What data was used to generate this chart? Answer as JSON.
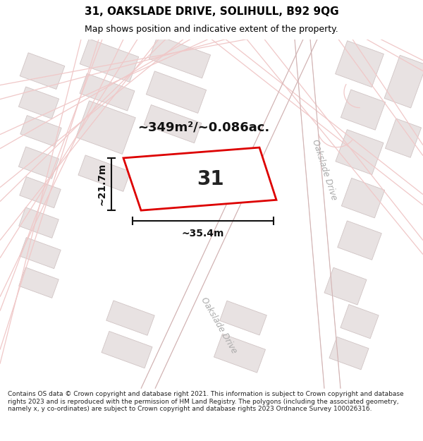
{
  "title": "31, OAKSLADE DRIVE, SOLIHULL, B92 9QG",
  "subtitle": "Map shows position and indicative extent of the property.",
  "area_text": "~349m²/~0.086ac.",
  "width_label": "~35.4m",
  "height_label": "~21.7m",
  "plot_number": "31",
  "footer": "Contains OS data © Crown copyright and database right 2021. This information is subject to Crown copyright and database rights 2023 and is reproduced with the permission of HM Land Registry. The polygons (including the associated geometry, namely x, y co-ordinates) are subject to Crown copyright and database rights 2023 Ordnance Survey 100026316.",
  "map_bg": "#f7f3f3",
  "road_color": "#f0c8c8",
  "road_outline_color": "#c8a0a0",
  "building_fill": "#e8e2e2",
  "building_edge": "#d0c4c4",
  "plot_fill": "#f0eeee",
  "plot_outline": "#dd0000",
  "dim_color": "#111111",
  "road_label_color": "#aaaaaa",
  "title_fontsize": 11,
  "subtitle_fontsize": 9,
  "footer_fontsize": 6.5
}
